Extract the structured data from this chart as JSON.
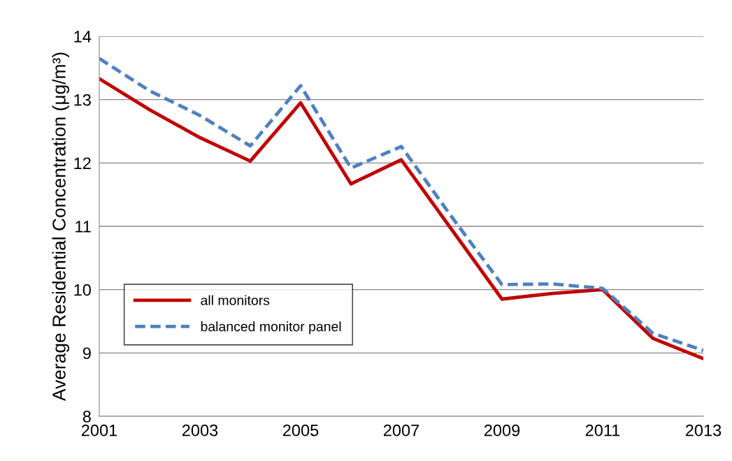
{
  "chart_data": {
    "type": "line",
    "ylabel": "Average Residential Concentration (μg/m³)",
    "x": [
      2001,
      2002,
      2003,
      2004,
      2005,
      2006,
      2007,
      2008,
      2009,
      2010,
      2011,
      2012,
      2013
    ],
    "series": [
      {
        "name": "all monitors",
        "color": "#c00000",
        "line_style": "solid",
        "values": [
          13.33,
          12.84,
          12.4,
          12.03,
          12.95,
          11.67,
          12.05,
          10.95,
          9.85,
          9.94,
          10.0,
          9.23,
          8.91
        ]
      },
      {
        "name": "balanced monitor panel",
        "color": "#4f81bd",
        "line_style": "dashed",
        "values": [
          13.65,
          13.14,
          12.75,
          12.27,
          13.22,
          11.92,
          12.26,
          11.15,
          10.08,
          10.09,
          10.02,
          9.31,
          9.04
        ]
      }
    ],
    "xlim": [
      2001,
      2013
    ],
    "xticks": [
      2001,
      2003,
      2005,
      2007,
      2009,
      2011,
      2013
    ],
    "ylim": [
      8,
      14
    ],
    "yticks": [
      8,
      9,
      10,
      11,
      12,
      13,
      14
    ],
    "grid": "y",
    "legend": "bottom left",
    "marker": "none"
  }
}
